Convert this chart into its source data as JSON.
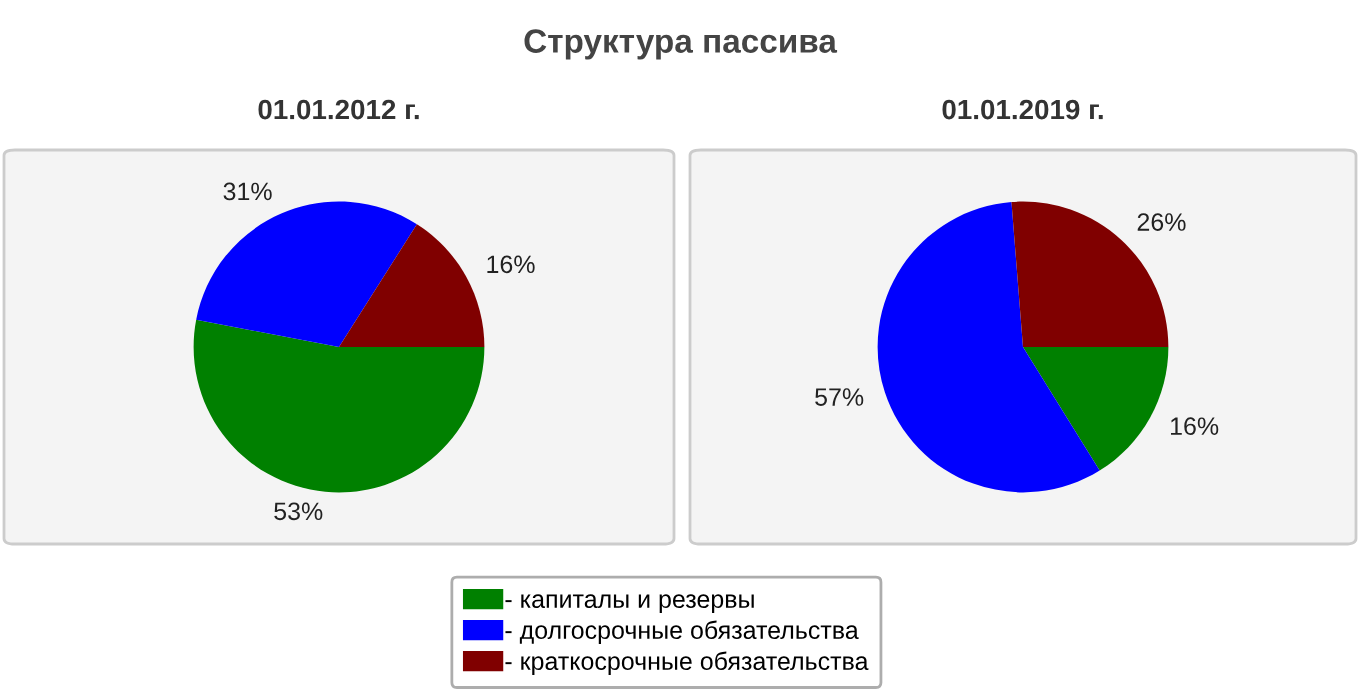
{
  "chart_data": [
    {
      "type": "pie",
      "title": "01.01.2012 г.",
      "annotations": [
        "Структура пассива"
      ],
      "categories": [
        "- капиталы и резервы",
        "- долгосрочные обязательства",
        "- краткосрочные обязательства"
      ],
      "values": [
        53,
        31,
        16
      ],
      "value_labels": [
        "53%",
        "31%",
        "16%"
      ],
      "colors": [
        "#008000",
        "#0000ff",
        "#800000"
      ],
      "legend": "bottom"
    },
    {
      "type": "pie",
      "title": "01.01.2019 г.",
      "categories": [
        null,
        null,
        null
      ],
      "values": [
        16,
        57,
        26
      ],
      "value_labels": [
        "16%",
        "57%",
        "26%"
      ],
      "colors": [
        "#008000",
        "#0000ff",
        "#800000"
      ]
    }
  ]
}
